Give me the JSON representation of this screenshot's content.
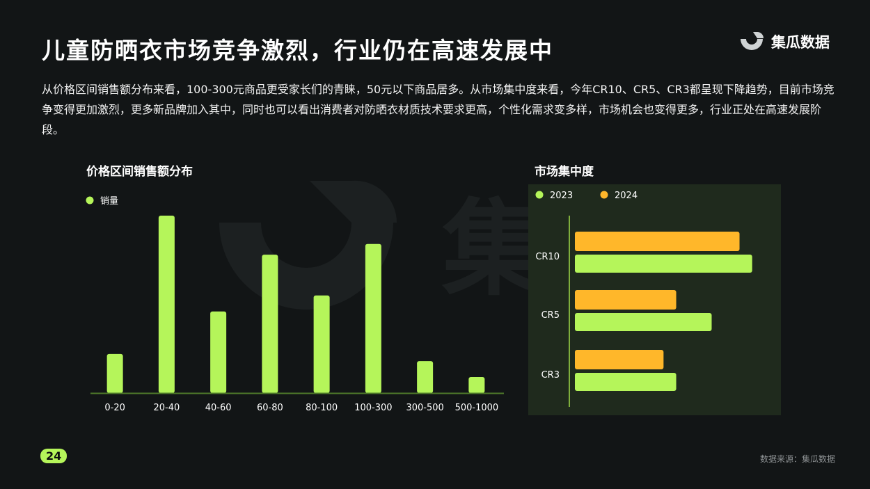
{
  "title": "儿童防晒衣市场竞争激烈，行业仍在高速发展中",
  "brand": {
    "name": "集瓜数据",
    "icon": "jigua-logo-icon",
    "watermark_text": "集瓜"
  },
  "description": "从价格区间销售额分布来看，100-300元商品更受家长们的青睐，50元以下商品居多。从市场集中度来看，今年CR10、CR5、CR3都呈现下降趋势，目前市场竞争变得更加激烈，更多新品牌加入其中，同时也可以看出消费者对防晒衣材质技术要求更高，个性化需求变多样，市场机会也变得更多，行业正处在高速发展阶段。",
  "page_number": "24",
  "source": "数据来源：集瓜数据",
  "colors": {
    "accent_green": "#b5f55a",
    "accent_orange": "#ffb72a",
    "background": "#121516",
    "panel": "#1f2a1d"
  },
  "chart_data": [
    {
      "type": "bar",
      "title": "价格区间销售额分布",
      "categories": [
        "0-20",
        "20-40",
        "40-60",
        "60-80",
        "80-100",
        "100-300",
        "300-500",
        "500-1000"
      ],
      "series": [
        {
          "name": "销量",
          "color": "#b5f55a",
          "values": [
            22,
            100,
            46,
            78,
            55,
            84,
            18,
            9
          ]
        }
      ],
      "ylim": [
        0,
        100
      ],
      "grid": false,
      "legend": "top-left"
    },
    {
      "type": "bar",
      "orientation": "horizontal",
      "title": "市场集中度",
      "categories": [
        "CR10",
        "CR5",
        "CR3"
      ],
      "series": [
        {
          "name": "2023",
          "color": "#b5f55a",
          "values": [
            70,
            54,
            40
          ]
        },
        {
          "name": "2024",
          "color": "#ffb72a",
          "values": [
            65,
            40,
            35
          ]
        }
      ],
      "xlim": [
        0,
        72
      ],
      "grid": false,
      "legend": "top-left"
    }
  ]
}
